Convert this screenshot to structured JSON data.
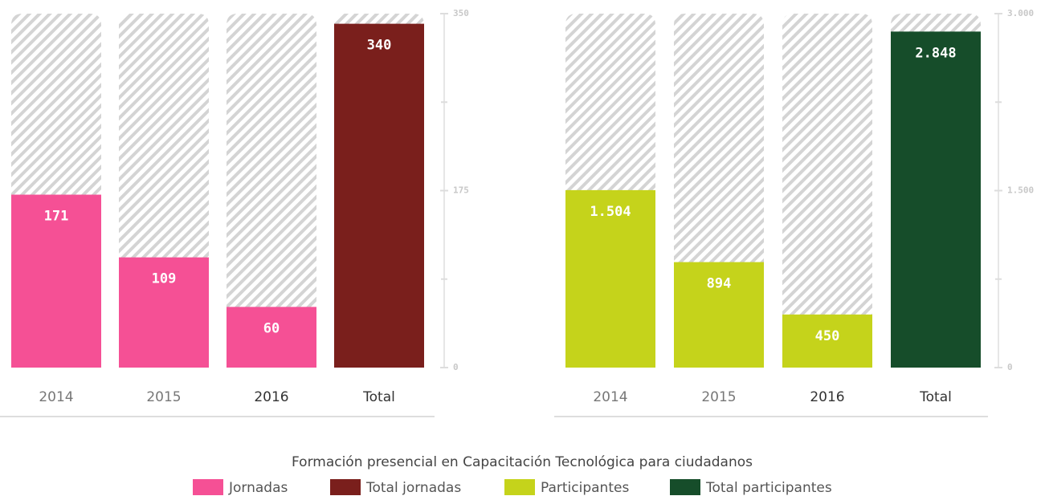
{
  "caption": "Formación presencial en Capacitación Tecnológica para ciudadanos",
  "chart_data": [
    {
      "type": "bar",
      "categories": [
        "2014",
        "2015",
        "2016",
        "Total"
      ],
      "series": [
        {
          "name": "Jornadas",
          "color": "#f55095",
          "values": [
            171,
            109,
            60,
            null
          ]
        },
        {
          "name": "Total jornadas",
          "color": "#7a1f1c",
          "values": [
            null,
            null,
            null,
            340
          ]
        }
      ],
      "ylim": [
        0,
        350
      ],
      "yticks": [
        0,
        175,
        350
      ],
      "minor_yticks": [
        87.5,
        262.5
      ]
    },
    {
      "type": "bar",
      "categories": [
        "2014",
        "2015",
        "2016",
        "Total"
      ],
      "series": [
        {
          "name": "Participantes",
          "color": "#c5d31b",
          "values": [
            1504,
            894,
            450,
            null
          ],
          "value_labels": [
            "1.504",
            "894",
            "450",
            null
          ]
        },
        {
          "name": "Total participantes",
          "color": "#164d2a",
          "values": [
            null,
            null,
            null,
            2848
          ],
          "value_labels": [
            null,
            null,
            null,
            "2.848"
          ]
        }
      ],
      "ylim": [
        0,
        3000
      ],
      "yticks": [
        0,
        {
          "value": 1500,
          "label": "1.500"
        },
        {
          "value": 3000,
          "label": "3.000"
        }
      ],
      "minor_yticks": [
        750,
        2250
      ]
    }
  ]
}
